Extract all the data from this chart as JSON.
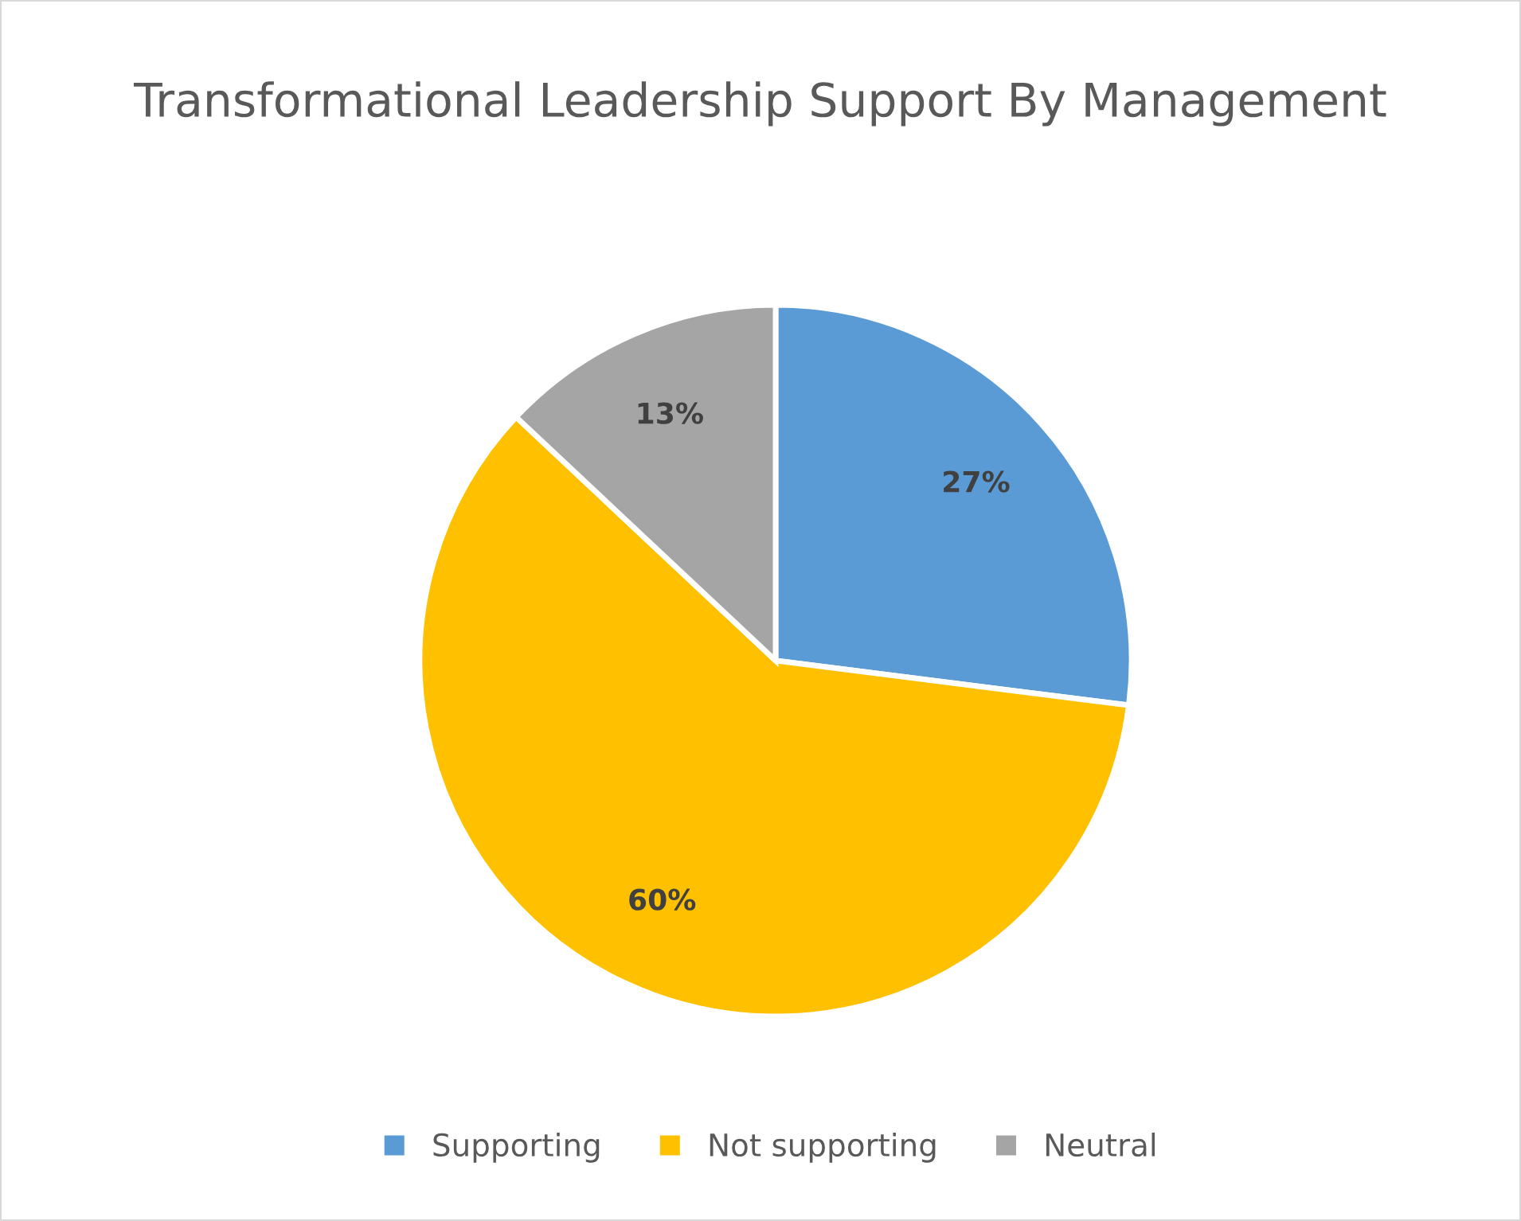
{
  "chart_data": {
    "type": "pie",
    "title": "Transformational Leadership Support By Management",
    "categories": [
      "Supporting",
      "Not supporting",
      "Neutral"
    ],
    "values": [
      27,
      60,
      13
    ],
    "colors": [
      "#5b9bd5",
      "#ffc000",
      "#a5a5a5"
    ],
    "value_labels": [
      "27%",
      "60%",
      "13%"
    ],
    "legend": "bottom"
  }
}
